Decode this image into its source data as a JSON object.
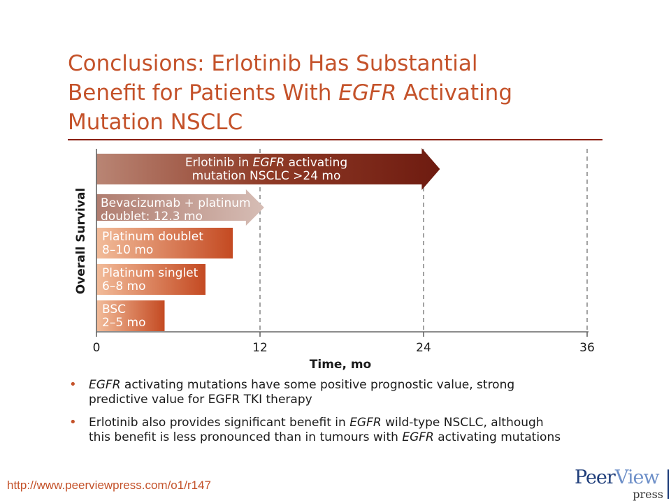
{
  "title": {
    "line1": "Conclusions: Erlotinib Has Substantial",
    "line2_pre": "Benefit for Patients With ",
    "line2_em": "EGFR",
    "line2_post": " Activating",
    "line3": "Mutation NSCLC"
  },
  "chart_data": {
    "type": "bar",
    "orientation": "horizontal",
    "xlabel": "Time, mo",
    "ylabel": "Overall Survival",
    "xlim": [
      0,
      36
    ],
    "xticks": [
      "0",
      "12",
      "24",
      "36"
    ],
    "grid": "dashed vertical lines at 12, 24, 36",
    "colors": {
      "light": "#f0b896",
      "mid": "#c8522a",
      "dark": "#6e1b10",
      "grid": "#8c8c8c"
    },
    "bars": [
      {
        "label_lines": [
          [
            "Erlotinib in ",
            "EGFR",
            " activating"
          ],
          [
            "mutation NSCLC >24 mo",
            "",
            ""
          ]
        ],
        "value": 25.2,
        "arrow": true,
        "style": "dark"
      },
      {
        "label_lines": [
          [
            "Bevacizumab + platinum",
            "",
            ""
          ],
          [
            "doublet: 12.3 mo",
            "",
            ""
          ]
        ],
        "value": 12.3,
        "arrow": true,
        "style": "gray"
      },
      {
        "label_lines": [
          [
            "Platinum doublet",
            "",
            ""
          ],
          [
            "8–10 mo",
            "",
            ""
          ]
        ],
        "value": 10,
        "arrow": false,
        "style": "orange"
      },
      {
        "label_lines": [
          [
            "Platinum singlet",
            "",
            ""
          ],
          [
            "6–8 mo",
            "",
            ""
          ]
        ],
        "value": 8,
        "arrow": false,
        "style": "orange"
      },
      {
        "label_lines": [
          [
            "BSC",
            "",
            ""
          ],
          [
            "2–5 mo",
            "",
            ""
          ]
        ],
        "value": 5,
        "arrow": false,
        "style": "orange"
      }
    ]
  },
  "bullets": [
    {
      "lines": [
        [
          "",
          "EGFR",
          " activating mutations have some positive prognostic value, strong"
        ],
        [
          "predictive value for EGFR TKI therapy",
          "",
          ""
        ]
      ]
    },
    {
      "lines": [
        [
          "Erlotinib also provides significant benefit in ",
          "EGFR",
          " wild-type NSCLC, although"
        ],
        [
          "this benefit is less pronounced than in tumours with ",
          "EGFR",
          " activating mutations"
        ]
      ]
    }
  ],
  "bullet_symbol": "•",
  "url": "http://www.peerviewpress.com/o1/r147",
  "logo": {
    "text_peer": "Peer",
    "text_view": "View",
    "text_press": "press"
  }
}
